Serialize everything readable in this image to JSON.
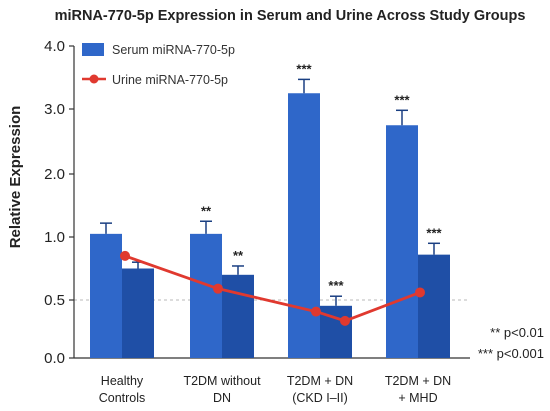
{
  "chart_data": {
    "type": "bar",
    "title": "miRNA-770-5p Expression in Serum and Urine Across Study Groups",
    "ylabel": "Relative Expression",
    "xlabel": "",
    "ylim": [
      0,
      4.0
    ],
    "yticks": [
      "0.0",
      "0.5",
      "1.0",
      "2.0",
      "3.0",
      "4.0"
    ],
    "categories": [
      [
        "Healthy",
        "Controls"
      ],
      [
        "T2DM without",
        "DN"
      ],
      [
        "T2DM + DN",
        "(CKD I–II)"
      ],
      [
        "T2DM + DN",
        "+ MHD"
      ]
    ],
    "reference_line": 0.5,
    "series": [
      {
        "name": "Serum miRNA-770-5p",
        "kind": "bar",
        "color": "#2f67c9",
        "values": [
          1.05,
          1.05,
          3.25,
          2.75
        ],
        "errors": [
          0.17,
          0.2,
          0.22,
          0.23
        ],
        "significance": [
          "",
          "**",
          "***",
          "***"
        ]
      },
      {
        "name": "",
        "kind": "bar",
        "color": "#1f4fa6",
        "values": [
          0.75,
          0.7,
          0.45,
          0.86
        ],
        "errors": [
          0.05,
          0.07,
          0.08,
          0.09
        ],
        "significance": [
          "",
          "**",
          "***",
          "***"
        ]
      },
      {
        "name": "Urine miRNA-770-5p",
        "kind": "line",
        "color": "#e0392f",
        "points": [
          {
            "category": 0,
            "value": 0.85
          },
          {
            "category": 1,
            "value": 0.59
          },
          {
            "category": 2,
            "value": 0.4
          },
          {
            "category": 2,
            "value": 0.32
          },
          {
            "category": 3,
            "value": 0.56
          }
        ]
      }
    ],
    "significance_notes": [
      "** p<0.01",
      "*** p<0.001"
    ],
    "legend": "top-left",
    "grid": false
  }
}
